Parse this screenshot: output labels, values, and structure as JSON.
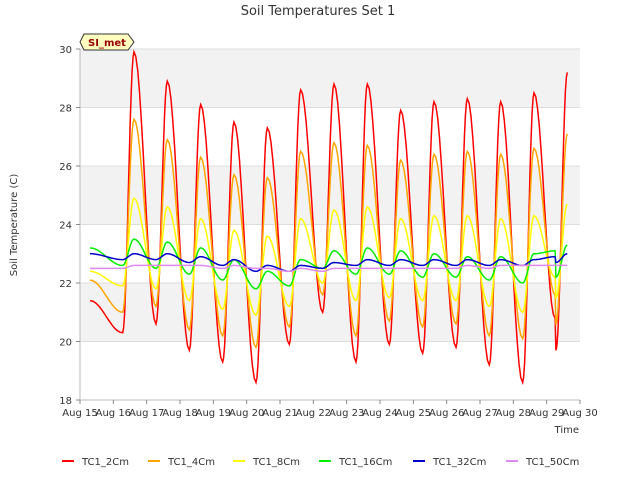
{
  "chart_data": {
    "type": "line",
    "title": "Soil Temperatures Set 1",
    "xlabel": "Time",
    "ylabel": "Soil Temperature (C)",
    "ylim": [
      18,
      30
    ],
    "xlim": [
      15,
      30
    ],
    "x_ticks": [
      {
        "v": 15,
        "label": "Aug 15"
      },
      {
        "v": 16,
        "label": "Aug 16"
      },
      {
        "v": 17,
        "label": "Aug 17"
      },
      {
        "v": 18,
        "label": "Aug 18"
      },
      {
        "v": 19,
        "label": "Aug 19"
      },
      {
        "v": 20,
        "label": "Aug 20"
      },
      {
        "v": 21,
        "label": "Aug 21"
      },
      {
        "v": 22,
        "label": "Aug 22"
      },
      {
        "v": 23,
        "label": "Aug 23"
      },
      {
        "v": 24,
        "label": "Aug 24"
      },
      {
        "v": 25,
        "label": "Aug 25"
      },
      {
        "v": 26,
        "label": "Aug 26"
      },
      {
        "v": 27,
        "label": "Aug 27"
      },
      {
        "v": 28,
        "label": "Aug 28"
      },
      {
        "v": 29,
        "label": "Aug 29"
      },
      {
        "v": 30,
        "label": "Aug 30"
      }
    ],
    "y_ticks": [
      18,
      20,
      22,
      24,
      26,
      28,
      30
    ],
    "annotation": "SI_met",
    "grid": "horizontal bands",
    "legend_position": "bottom",
    "x_range_data": [
      15.3,
      29.25
    ],
    "days": [
      15,
      16,
      17,
      18,
      19,
      20,
      21,
      22,
      23,
      24,
      25,
      26,
      27,
      28,
      29
    ],
    "series": [
      {
        "name": "TC1_2Cm",
        "color": "#ff0000",
        "peaks": [
          29.9,
          28.9,
          28.1,
          27.5,
          27.3,
          28.6,
          28.8,
          28.8,
          27.9,
          28.2,
          28.3,
          28.2,
          28.5,
          29.2
        ],
        "troughs": [
          21.4,
          20.3,
          20.6,
          19.7,
          19.3,
          18.6,
          19.9,
          21.0,
          19.3,
          19.9,
          19.6,
          19.8,
          19.2,
          18.6,
          19.7,
          20.8
        ]
      },
      {
        "name": "TC1_4Cm",
        "color": "#ffa500",
        "peaks": [
          27.6,
          26.9,
          26.3,
          25.7,
          25.6,
          26.5,
          26.8,
          26.7,
          26.2,
          26.4,
          26.5,
          26.4,
          26.6,
          27.1
        ],
        "troughs": [
          22.1,
          21.0,
          21.2,
          20.4,
          20.2,
          19.8,
          20.5,
          21.6,
          20.2,
          20.7,
          20.5,
          20.6,
          20.2,
          20.1,
          20.6,
          21.6
        ]
      },
      {
        "name": "TC1_8Cm",
        "color": "#ffff00",
        "peaks": [
          24.9,
          24.6,
          24.2,
          23.8,
          23.6,
          24.2,
          24.5,
          24.6,
          24.2,
          24.3,
          24.3,
          24.2,
          24.3,
          24.7
        ],
        "troughs": [
          22.4,
          21.9,
          21.8,
          21.4,
          21.1,
          20.9,
          21.2,
          22.0,
          21.4,
          21.5,
          21.4,
          21.4,
          21.2,
          21.0,
          21.5,
          22.2
        ]
      },
      {
        "name": "TC1_16Cm",
        "color": "#00ee00",
        "peaks": [
          23.5,
          23.4,
          23.2,
          22.8,
          22.4,
          22.8,
          23.1,
          23.2,
          23.1,
          23.0,
          22.9,
          22.9,
          23.0,
          23.3
        ],
        "troughs": [
          23.2,
          22.6,
          22.5,
          22.3,
          22.1,
          21.8,
          21.9,
          22.5,
          22.3,
          22.3,
          22.2,
          22.2,
          22.1,
          22.0,
          22.2,
          23.1
        ]
      },
      {
        "name": "TC1_32Cm",
        "color": "#0000cc",
        "peaks": [
          23.0,
          23.0,
          22.9,
          22.8,
          22.6,
          22.6,
          22.7,
          22.8,
          22.8,
          22.8,
          22.8,
          22.8,
          22.8,
          23.0
        ],
        "troughs": [
          23.0,
          22.8,
          22.8,
          22.7,
          22.6,
          22.4,
          22.4,
          22.5,
          22.6,
          22.6,
          22.6,
          22.6,
          22.6,
          22.6,
          22.7,
          22.9
        ]
      },
      {
        "name": "TC1_50Cm",
        "color": "#dd88ee",
        "peaks": [
          22.6,
          22.6,
          22.6,
          22.6,
          22.5,
          22.5,
          22.5,
          22.5,
          22.5,
          22.5,
          22.6,
          22.6,
          22.6,
          22.6
        ],
        "troughs": [
          22.5,
          22.5,
          22.6,
          22.6,
          22.5,
          22.5,
          22.4,
          22.4,
          22.5,
          22.5,
          22.5,
          22.5,
          22.5,
          22.6,
          22.6,
          22.6
        ]
      }
    ]
  }
}
